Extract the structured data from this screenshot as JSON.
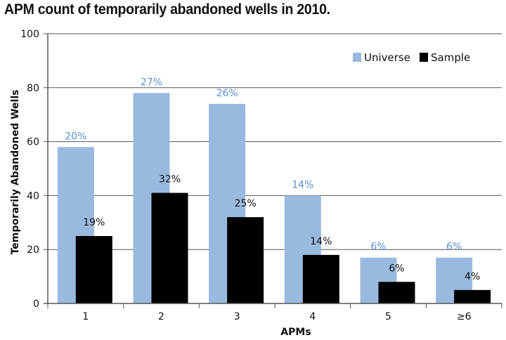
{
  "colors": {
    "universe": "#9ab9df",
    "sample": "#000000",
    "universe_label": "#5b8fd1",
    "axis": "#555555",
    "grid": "#555555"
  },
  "chart_data": {
    "type": "bar",
    "title": "APM count of temporarily abandoned wells in 2010.",
    "xlabel": "APMs",
    "ylabel": "Temporarily Abandoned Wells",
    "ylim": [
      0,
      100
    ],
    "yticks": [
      0,
      20,
      40,
      60,
      80,
      100
    ],
    "categories": [
      "1",
      "2",
      "3",
      "4",
      "5",
      "≥6"
    ],
    "legend_position": "top-right",
    "grid": true,
    "series": [
      {
        "name": "Universe",
        "values": [
          58,
          78,
          74,
          40,
          17,
          17
        ],
        "labels": [
          "20%",
          "27%",
          "26%",
          "14%",
          "6%",
          "6%"
        ]
      },
      {
        "name": "Sample",
        "values": [
          25,
          41,
          32,
          18,
          8,
          5
        ],
        "labels": [
          "19%",
          "32%",
          "25%",
          "14%",
          "6%",
          "4%"
        ]
      }
    ]
  }
}
